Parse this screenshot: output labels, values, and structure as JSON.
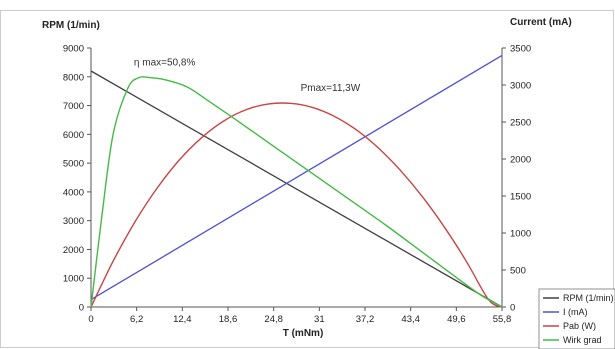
{
  "chart_data": {
    "type": "line",
    "x_label": "T (mNm)",
    "y_left_label": "RPM (1/min)",
    "y_right_label": "Current (mA)",
    "x_ticks": [
      "0",
      "6,2",
      "12,4",
      "18,6",
      "24,8",
      "31",
      "37,2",
      "43,4",
      "49,6",
      "55,8"
    ],
    "y_left_ticks": [
      "0",
      "1000",
      "2000",
      "3000",
      "4000",
      "5000",
      "6000",
      "7000",
      "8000",
      "9000"
    ],
    "y_right_ticks": [
      "0",
      "500",
      "1000",
      "1500",
      "2000",
      "2500",
      "3000",
      "3500"
    ],
    "xlim": [
      0,
      55.8
    ],
    "ylim_left": [
      0,
      9000
    ],
    "ylim_right": [
      0,
      3500
    ],
    "grid": false,
    "legend_position": "bottom-right",
    "series": [
      {
        "name": "RPM (1/min)",
        "color": "#404040",
        "axis": "left",
        "x": [
          0,
          55.8
        ],
        "y": [
          8200,
          0
        ]
      },
      {
        "name": "I (mA)",
        "color": "#4f4fd6",
        "axis": "right",
        "x": [
          0,
          55.8
        ],
        "y": [
          100,
          3400
        ]
      },
      {
        "name": "Pab (W)",
        "color": "#cc4444",
        "axis": "left",
        "x": [
          0,
          3,
          6,
          9,
          12,
          15,
          18,
          21,
          24,
          27,
          30,
          33,
          36,
          39,
          42,
          45,
          48,
          51,
          54,
          55.8
        ],
        "y": [
          0,
          1590,
          2970,
          4140,
          5110,
          5880,
          6460,
          6850,
          7050,
          7080,
          6940,
          6630,
          6160,
          5530,
          4750,
          3830,
          2770,
          1570,
          250,
          0
        ]
      },
      {
        "name": "Wirk grad",
        "color": "#44bb44",
        "axis": "left",
        "x": [
          0,
          1.5,
          3,
          5,
          6.5,
          8,
          10,
          13,
          16,
          20,
          25,
          30,
          35,
          40,
          45,
          50,
          53,
          55.8
        ],
        "y": [
          0,
          3200,
          6000,
          7600,
          7970,
          7970,
          7900,
          7650,
          7150,
          6450,
          5550,
          4650,
          3750,
          2850,
          1900,
          950,
          400,
          0
        ]
      }
    ],
    "annotations": [
      {
        "text": "η max=50,8%",
        "x": 10,
        "y": 8400
      },
      {
        "text": "Pmax=11,3W",
        "x": 32.5,
        "y": 7500
      }
    ]
  }
}
